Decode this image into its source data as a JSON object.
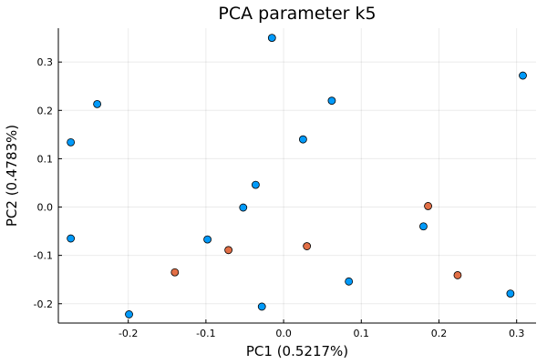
{
  "chart_data": {
    "type": "scatter",
    "title": "PCA parameter k5",
    "xlabel": "PC1 (0.5217%)",
    "ylabel": "PC2 (0.4783%)",
    "xlim": [
      -0.29,
      0.325
    ],
    "ylim": [
      -0.24,
      0.37
    ],
    "x_ticks": [
      -0.2,
      -0.1,
      0.0,
      0.1,
      0.2,
      0.3
    ],
    "x_tick_labels": [
      "-0.2",
      "-0.1",
      "0.0",
      "0.1",
      "0.2",
      "0.3"
    ],
    "y_ticks": [
      -0.2,
      -0.1,
      0.0,
      0.1,
      0.2,
      0.3
    ],
    "y_tick_labels": [
      "-0.2",
      "-0.1",
      "0.0",
      "0.1",
      "0.2",
      "0.3"
    ],
    "grid": true,
    "legend": false,
    "series": [
      {
        "color": "#009AFA",
        "points": [
          {
            "x": -0.015,
            "y": 0.35
          },
          {
            "x": 0.308,
            "y": 0.272
          },
          {
            "x": -0.24,
            "y": 0.213
          },
          {
            "x": 0.062,
            "y": 0.22
          },
          {
            "x": 0.025,
            "y": 0.14
          },
          {
            "x": -0.274,
            "y": 0.134
          },
          {
            "x": -0.036,
            "y": 0.046
          },
          {
            "x": -0.052,
            "y": -0.001
          },
          {
            "x": -0.274,
            "y": -0.065
          },
          {
            "x": -0.098,
            "y": -0.067
          },
          {
            "x": 0.18,
            "y": -0.04
          },
          {
            "x": 0.084,
            "y": -0.154
          },
          {
            "x": 0.292,
            "y": -0.179
          },
          {
            "x": -0.028,
            "y": -0.206
          },
          {
            "x": -0.199,
            "y": -0.222
          }
        ]
      },
      {
        "color": "#E26F46",
        "points": [
          {
            "x": 0.186,
            "y": 0.002
          },
          {
            "x": -0.071,
            "y": -0.089
          },
          {
            "x": 0.03,
            "y": -0.081
          },
          {
            "x": -0.14,
            "y": -0.135
          },
          {
            "x": 0.224,
            "y": -0.141
          }
        ]
      }
    ]
  }
}
